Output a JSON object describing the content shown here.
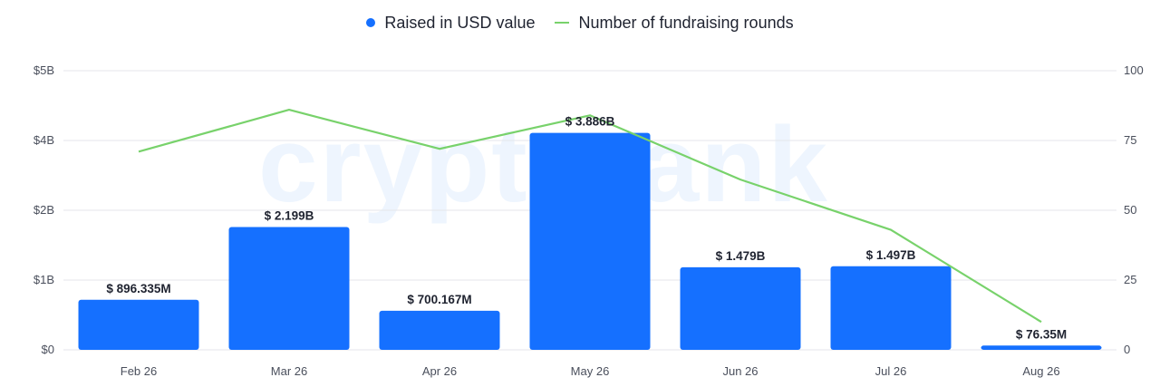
{
  "legend": {
    "bar_label": "Raised in USD value",
    "line_label": "Number of fundraising rounds"
  },
  "watermark": "cryptorank",
  "colors": {
    "bar": "#1570ff",
    "line": "#78d26b",
    "grid": "#e4e6eb"
  },
  "chart_data": {
    "type": "bar",
    "categories": [
      "Feb 26",
      "Mar 26",
      "Apr 26",
      "May 26",
      "Jun 26",
      "Jul 26",
      "Aug 26"
    ],
    "series": [
      {
        "name": "Raised in USD value",
        "type": "bar",
        "axis": "left",
        "values": [
          0.896335,
          2.199,
          0.700167,
          3.886,
          1.479,
          1.497,
          0.07635
        ],
        "labels": [
          "$ 896.335M",
          "$ 2.199B",
          "$ 700.167M",
          "$ 3.886B",
          "$ 1.479B",
          "$ 1.497B",
          "$ 76.35M"
        ]
      },
      {
        "name": "Number of fundraising rounds",
        "type": "line",
        "axis": "right",
        "values": [
          71,
          86,
          72,
          84,
          61,
          43,
          10
        ]
      }
    ],
    "y_left": {
      "ticks": [
        "$0",
        "$1B",
        "$2B",
        "$4B",
        "$5B"
      ],
      "tick_values": [
        0,
        1.25,
        2.5,
        3.75,
        5
      ],
      "range": [
        0,
        5
      ]
    },
    "y_right": {
      "ticks": [
        "0",
        "25",
        "50",
        "75",
        "100"
      ],
      "tick_values": [
        0,
        25,
        50,
        75,
        100
      ],
      "range": [
        0,
        100
      ]
    },
    "grid": true,
    "legend_position": "top-center"
  }
}
